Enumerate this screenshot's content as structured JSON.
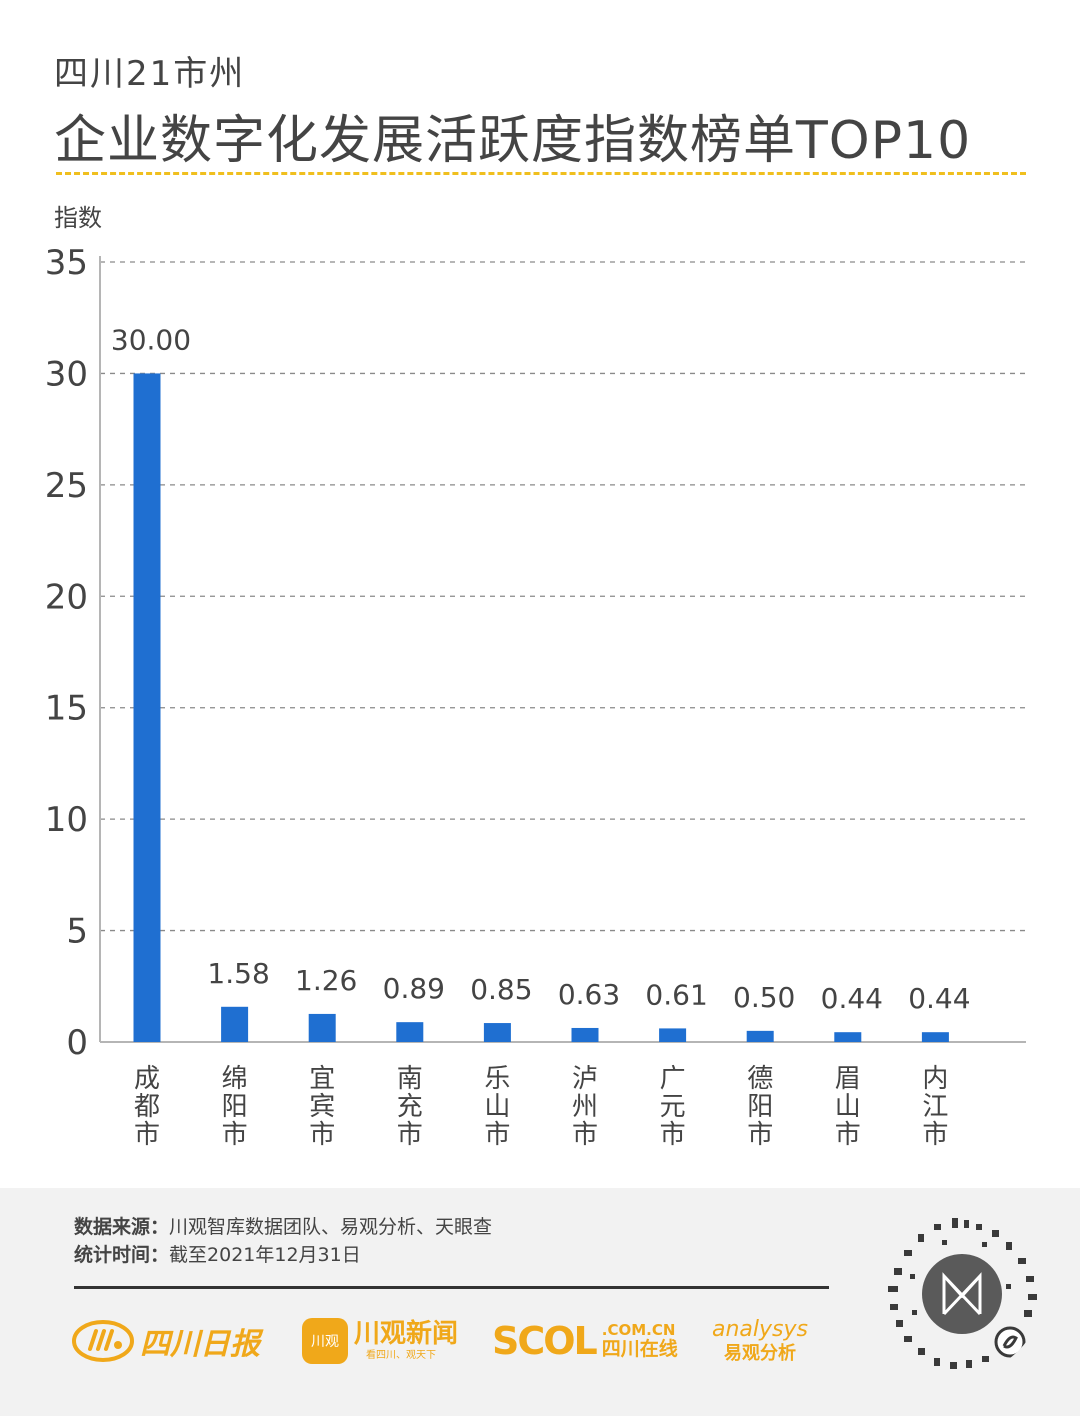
{
  "header": {
    "line1": "四川21市州",
    "line2": "企业数字化发展活跃度指数榜单TOP10"
  },
  "chart_data": {
    "type": "bar",
    "title": "企业数字化发展活跃度指数榜单TOP10",
    "ylabel": "指数",
    "xlabel": "",
    "categories": [
      "成都市",
      "绵阳市",
      "宜宾市",
      "南充市",
      "乐山市",
      "泸州市",
      "广元市",
      "德阳市",
      "眉山市",
      "内江市"
    ],
    "values": [
      30.0,
      1.58,
      1.26,
      0.89,
      0.85,
      0.63,
      0.61,
      0.5,
      0.44,
      0.44
    ],
    "value_labels": [
      "30.00",
      "1.58",
      "1.26",
      "0.89",
      "0.85",
      "0.63",
      "0.61",
      "0.50",
      "0.44",
      "0.44"
    ],
    "ylim": [
      0,
      35
    ],
    "yticks": [
      0,
      5,
      10,
      15,
      20,
      25,
      30,
      35
    ],
    "grid": true,
    "bar_color": "#1f6fd1"
  },
  "footer": {
    "source_label": "数据来源：",
    "source_value": "川观智库数据团队、易观分析、天眼查",
    "time_label": "统计时间：",
    "time_value": "截至2021年12月31日"
  },
  "logos": {
    "sichuan_daily": "四川日报",
    "chuanguan_badge": "川观",
    "chuanguan": "川观新闻",
    "chuanguan_slogan": "看四川、观天下",
    "scol": "SCOL",
    "scol_domain": ".COM.CN",
    "scol_name": "四川在线",
    "analysys": "analysys",
    "analysys_name": "易观分析"
  },
  "colors": {
    "accent": "#f0bf1e",
    "logo": "#f0a81a",
    "bar": "#1f6fd1"
  }
}
